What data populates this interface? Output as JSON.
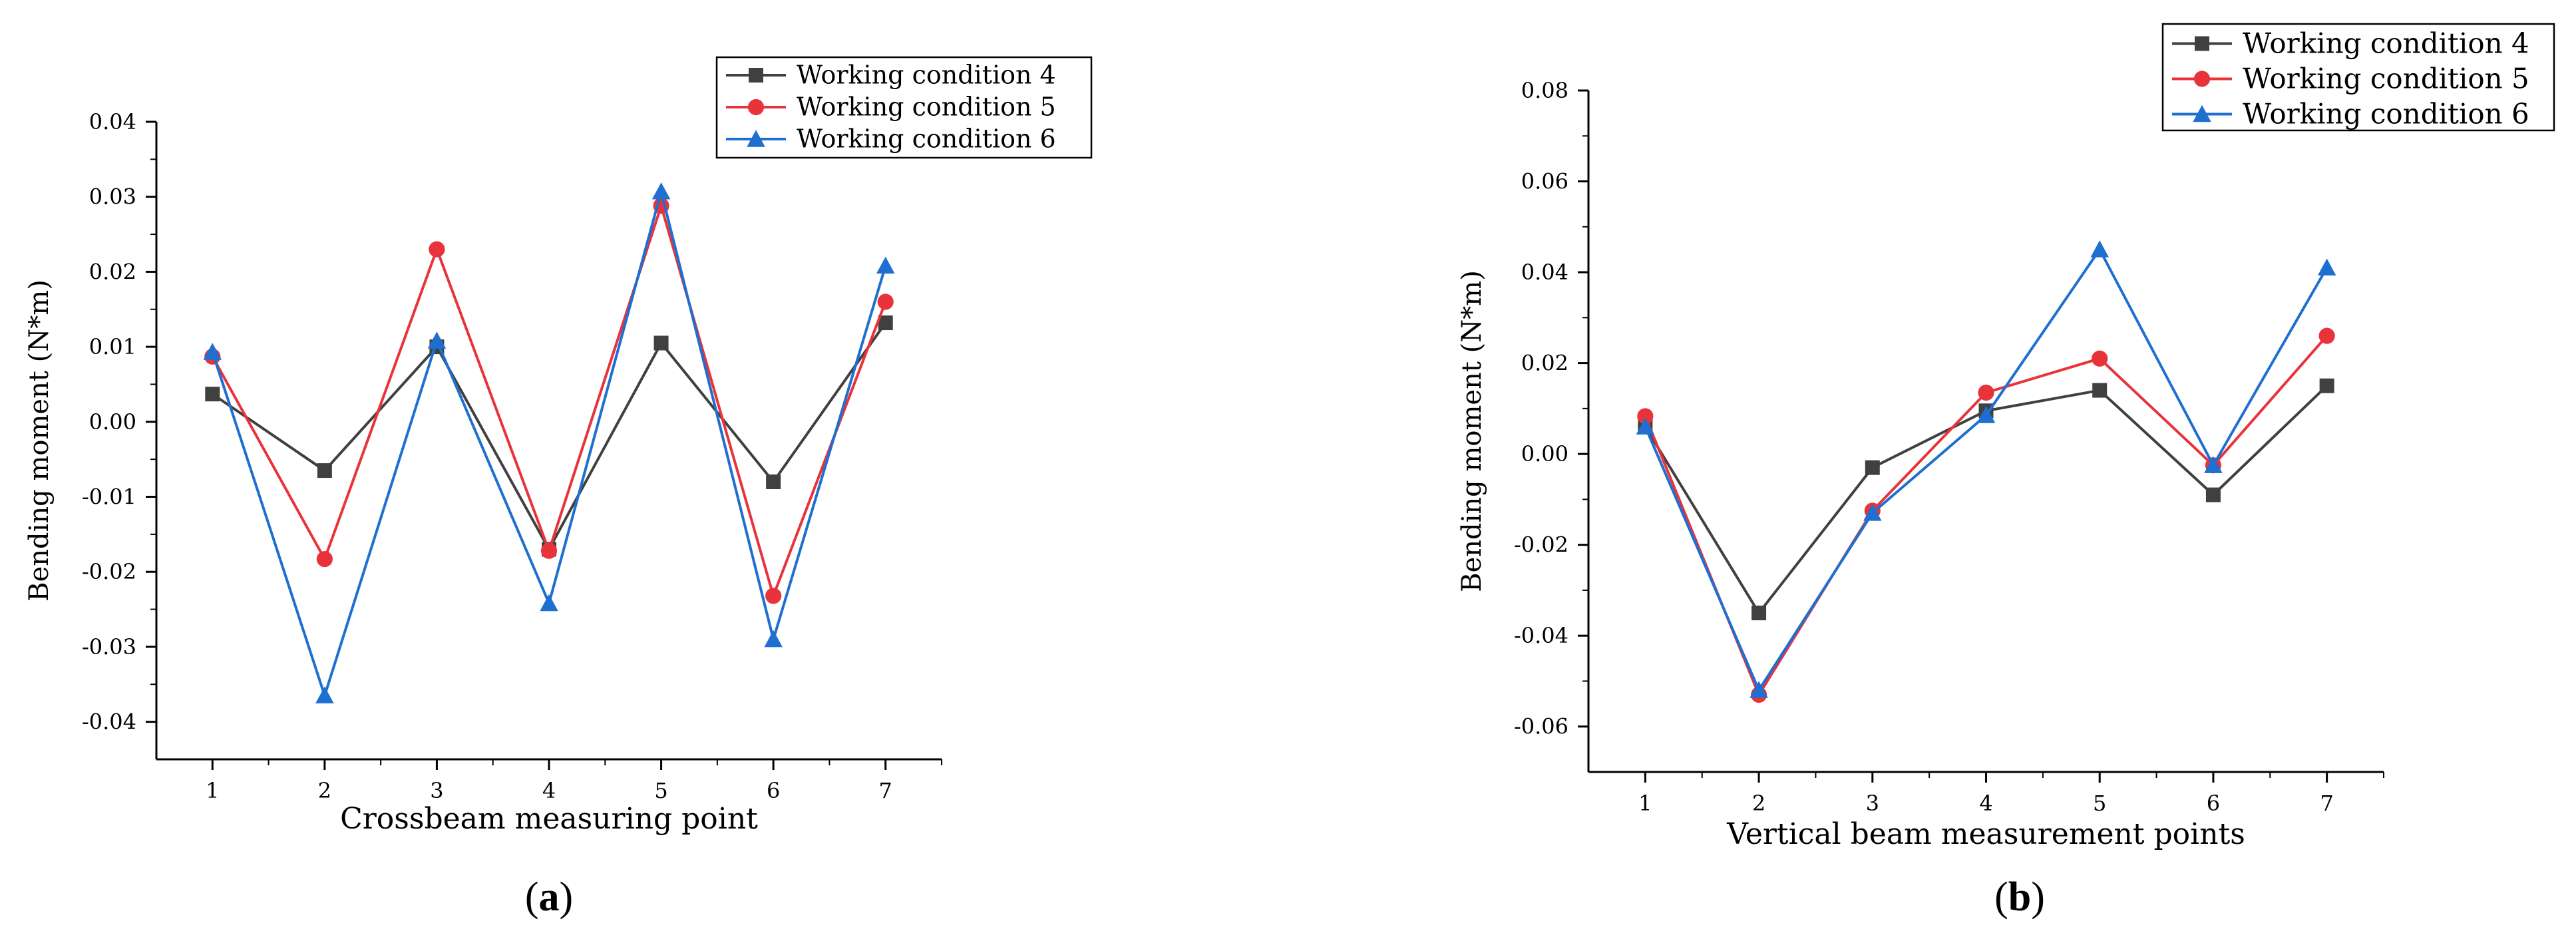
{
  "chart_data": [
    {
      "type": "line",
      "panel": "(a)",
      "panel_label": {
        "open": "(",
        "letter": "a",
        "close": ")"
      },
      "xlabel": "Crossbeam measuring point",
      "ylabel": "Bending moment (N*m)",
      "categories": [
        "1",
        "2",
        "3",
        "4",
        "5",
        "6",
        "7"
      ],
      "x": [
        1,
        2,
        3,
        4,
        5,
        6,
        7
      ],
      "xlim": [
        0.5,
        7.5
      ],
      "ylim": [
        -0.045,
        0.04
      ],
      "yticks": [
        -0.04,
        -0.03,
        -0.02,
        -0.01,
        0.0,
        0.01,
        0.02,
        0.03,
        0.04
      ],
      "ytick_labels": [
        "-0.04",
        "-0.03",
        "-0.02",
        "-0.01",
        "0.00",
        "0.01",
        "0.02",
        "0.03",
        "0.04"
      ],
      "legend_position": "top-right",
      "series": [
        {
          "name": "Working condition 4",
          "color": "#404040",
          "marker": "square",
          "values": [
            0.0037,
            -0.0065,
            0.01,
            -0.017,
            0.0105,
            -0.008,
            0.0132
          ]
        },
        {
          "name": "Working condition 5",
          "color": "#e8333b",
          "marker": "circle",
          "values": [
            0.0087,
            -0.0183,
            0.023,
            -0.0172,
            0.0288,
            -0.0232,
            0.016
          ]
        },
        {
          "name": "Working condition 6",
          "color": "#1f6fd1",
          "marker": "triangle",
          "values": [
            0.0093,
            -0.0365,
            0.0108,
            -0.0242,
            0.0307,
            -0.029,
            0.0208
          ]
        }
      ]
    },
    {
      "type": "line",
      "panel": "(b)",
      "panel_label": {
        "open": "(",
        "letter": "b",
        "close": ")"
      },
      "xlabel": "Vertical beam measurement points",
      "ylabel": "Bending moment (N*m)",
      "categories": [
        "1",
        "2",
        "3",
        "4",
        "5",
        "6",
        "7"
      ],
      "x": [
        1,
        2,
        3,
        4,
        5,
        6,
        7
      ],
      "xlim": [
        0.5,
        7.5
      ],
      "ylim": [
        -0.07,
        0.08
      ],
      "yticks": [
        -0.06,
        -0.04,
        -0.02,
        0.0,
        0.02,
        0.04,
        0.06,
        0.08
      ],
      "ytick_labels": [
        "-0.06",
        "-0.04",
        "-0.02",
        "0.00",
        "0.02",
        "0.04",
        "0.06",
        "0.08"
      ],
      "legend_position": "top-right",
      "series": [
        {
          "name": "Working condition 4",
          "color": "#404040",
          "marker": "square",
          "values": [
            0.006,
            -0.035,
            -0.003,
            0.0095,
            0.014,
            -0.009,
            0.015
          ]
        },
        {
          "name": "Working condition 5",
          "color": "#e8333b",
          "marker": "circle",
          "values": [
            0.0083,
            -0.053,
            -0.0125,
            0.0135,
            0.021,
            -0.0025,
            0.026
          ]
        },
        {
          "name": "Working condition 6",
          "color": "#1f6fd1",
          "marker": "triangle",
          "values": [
            0.006,
            -0.052,
            -0.013,
            0.0085,
            0.045,
            -0.0025,
            0.041
          ]
        }
      ]
    }
  ]
}
